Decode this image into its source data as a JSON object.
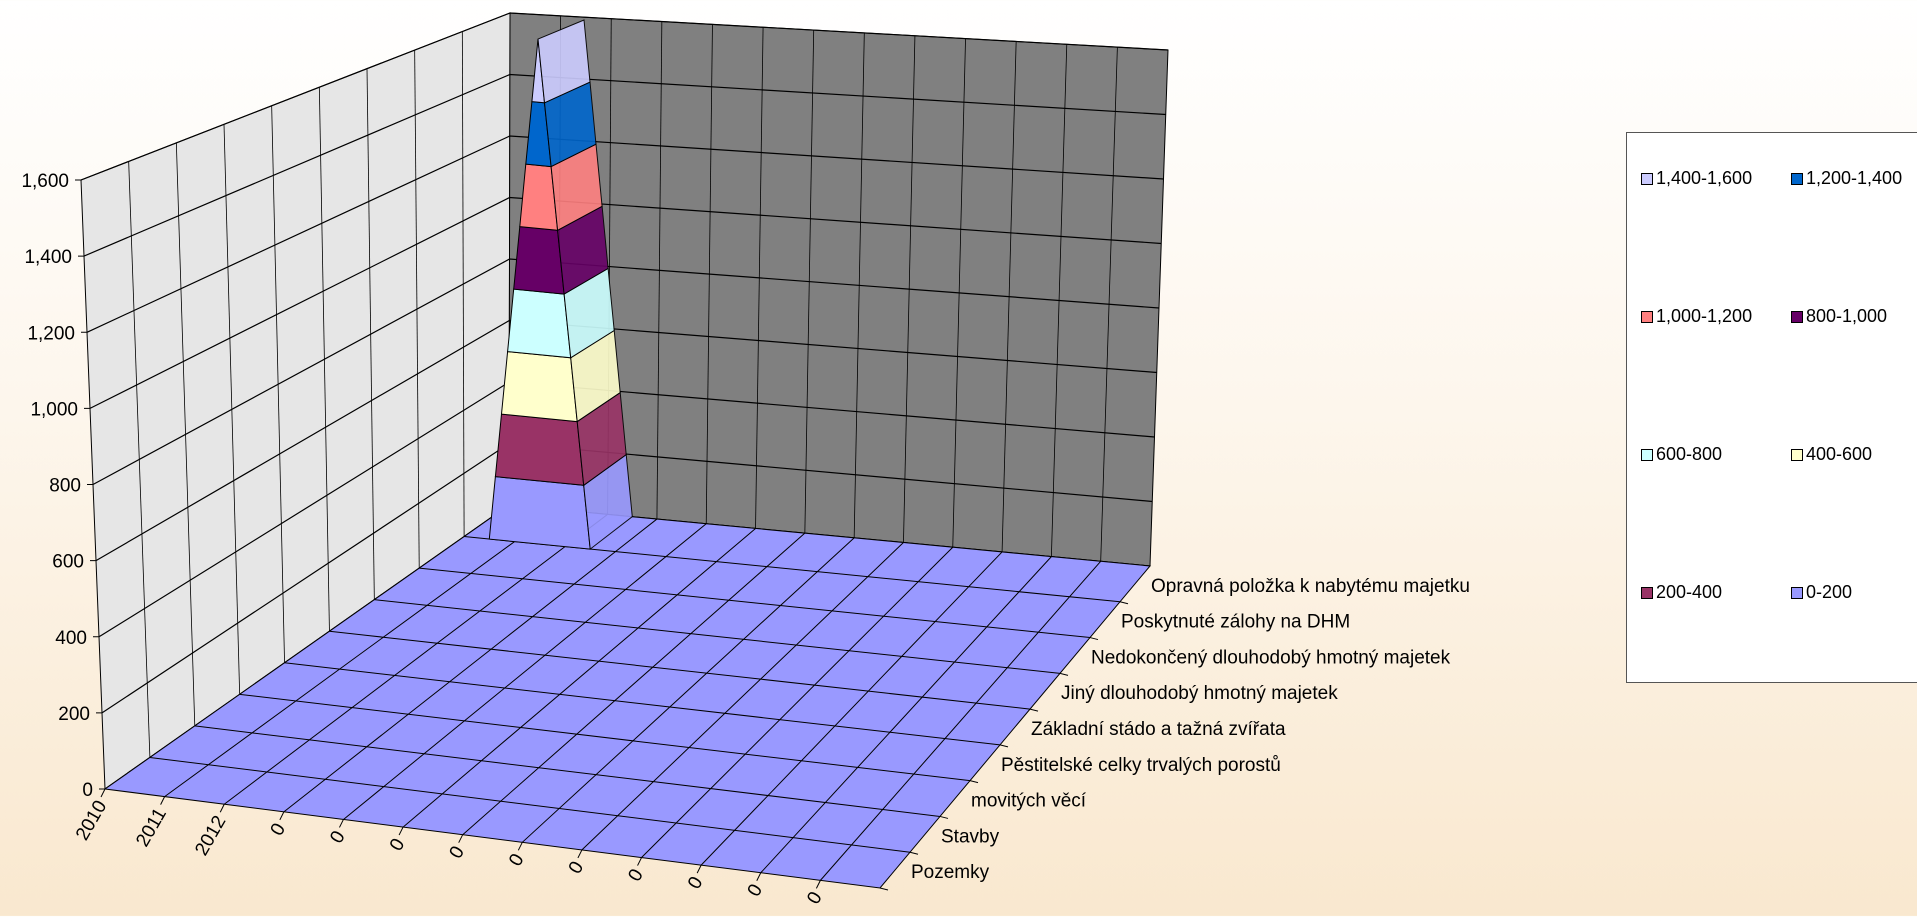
{
  "chart_data": {
    "type": "area",
    "subtype": "3d-area",
    "title": "",
    "x_categories": [
      "2010",
      "2011",
      "2012",
      "0",
      "0",
      "0",
      "0",
      "0",
      "0",
      "0",
      "0",
      "0",
      "0"
    ],
    "series_axis": [
      "Pozemky",
      "Stavby",
      "movitých věcí",
      "Pěstitelské celky trvalých porostů",
      "Základní stádo a tažná zvířata",
      "Jiný dlouhodobý hmotný majetek",
      "Nedokončený dlouhodobý hmotný majetek",
      "Poskytnuté zálohy na DHM",
      "Opravná položka k nabytému majetku"
    ],
    "series": [
      {
        "name": "Pozemky",
        "values": [
          0,
          0,
          0,
          0,
          0,
          0,
          0,
          0,
          0,
          0,
          0,
          0,
          0
        ]
      },
      {
        "name": "Stavby",
        "values": [
          0,
          0,
          0,
          0,
          0,
          0,
          0,
          0,
          0,
          0,
          0,
          0,
          0
        ]
      },
      {
        "name": "movitých věcí",
        "values": [
          0,
          0,
          0,
          0,
          0,
          0,
          0,
          0,
          0,
          0,
          0,
          0,
          0
        ]
      },
      {
        "name": "Pěstitelské celky trvalých porostů",
        "values": [
          0,
          0,
          0,
          0,
          0,
          0,
          0,
          0,
          0,
          0,
          0,
          0,
          0
        ]
      },
      {
        "name": "Základní stádo a tažná zvířata",
        "values": [
          0,
          0,
          0,
          0,
          0,
          0,
          0,
          0,
          0,
          0,
          0,
          0,
          0
        ]
      },
      {
        "name": "Jiný dlouhodobý hmotný majetek",
        "values": [
          0,
          0,
          0,
          0,
          0,
          0,
          0,
          0,
          0,
          0,
          0,
          0,
          0
        ]
      },
      {
        "name": "Nedokončený dlouhodobý hmotný majetek",
        "values": [
          0,
          0,
          0,
          0,
          0,
          0,
          0,
          0,
          0,
          0,
          0,
          0,
          0
        ]
      },
      {
        "name": "Poskytnuté zálohy na DHM",
        "values": [
          0,
          0,
          0,
          0,
          0,
          0,
          0,
          0,
          0,
          0,
          0,
          0,
          0
        ]
      },
      {
        "name": "Opravná položka k nabytému majetku",
        "values": [
          0,
          1600,
          0,
          0,
          0,
          0,
          0,
          0,
          0,
          0,
          0,
          0,
          0
        ]
      }
    ],
    "ylim": [
      0,
      1600
    ],
    "yticks": [
      0,
      200,
      400,
      600,
      800,
      1000,
      1200,
      1400,
      1600
    ],
    "ytick_labels": [
      "0",
      "200",
      "400",
      "600",
      "800",
      "1,000",
      "1,200",
      "1,400",
      "1,600"
    ],
    "grid": true,
    "legend_position": "right",
    "bands": [
      {
        "label": "1,400-1,600",
        "color": "#ccccff",
        "from": 1400,
        "to": 1600
      },
      {
        "label": "1,200-1,400",
        "color": "#0066cc",
        "from": 1200,
        "to": 1400
      },
      {
        "label": "1,000-1,200",
        "color": "#ff8080",
        "from": 1000,
        "to": 1200
      },
      {
        "label": "800-1,000",
        "color": "#660066",
        "from": 800,
        "to": 1000
      },
      {
        "label": "600-800",
        "color": "#ccffff",
        "from": 600,
        "to": 800
      },
      {
        "label": "400-600",
        "color": "#ffffcc",
        "from": 400,
        "to": 600
      },
      {
        "label": "200-400",
        "color": "#993366",
        "from": 200,
        "to": 400
      },
      {
        "label": "0-200",
        "color": "#9999ff",
        "from": 0,
        "to": 200
      }
    ],
    "colors": {
      "floor": "#9999ff",
      "back_wall": "#808080",
      "side_wall": "#e6e6e6"
    }
  }
}
